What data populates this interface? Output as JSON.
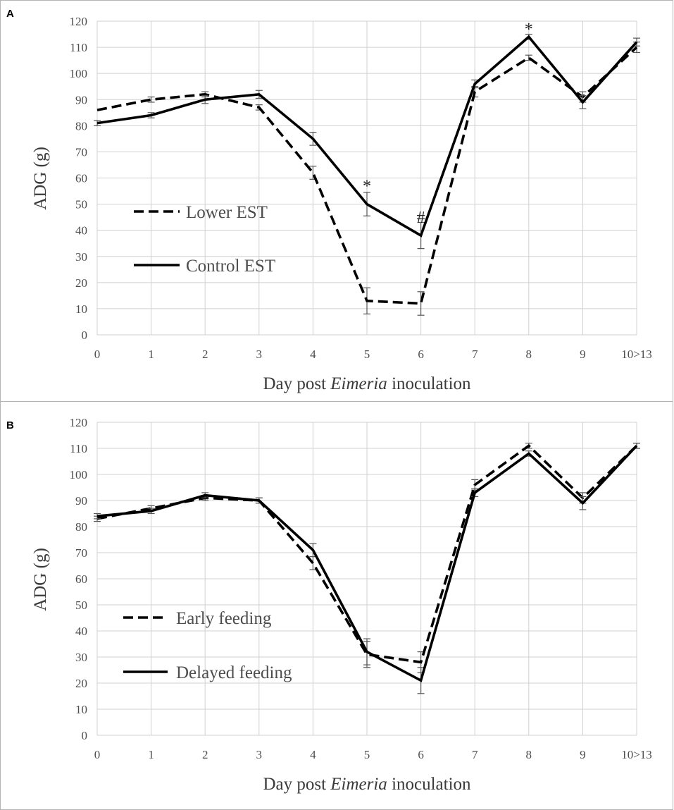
{
  "chart_data": [
    {
      "type": "line",
      "panel_label": "A",
      "categories": [
        "0",
        "1",
        "2",
        "3",
        "4",
        "5",
        "6",
        "7",
        "8",
        "9",
        "10>13"
      ],
      "xlabel": {
        "prefix": "Day post ",
        "italic": "Eimeria",
        "suffix": " inoculation"
      },
      "ylabel": "ADG (g)",
      "ylim": [
        0,
        120
      ],
      "yticks": [
        0,
        10,
        20,
        30,
        40,
        50,
        60,
        70,
        80,
        90,
        100,
        110,
        120
      ],
      "grid": true,
      "legend_position": "center-left",
      "series": [
        {
          "name": "Lower EST",
          "style": "dashed",
          "values": [
            86,
            90,
            92,
            87,
            62,
            13,
            12,
            93,
            106,
            91,
            110
          ],
          "errors": [
            0,
            1,
            1,
            1,
            2.5,
            5,
            4.5,
            2,
            1,
            2,
            2
          ]
        },
        {
          "name": "Control EST",
          "style": "solid",
          "values": [
            81,
            84,
            90,
            92,
            75,
            50,
            38,
            96,
            114,
            89,
            112
          ],
          "errors": [
            1,
            1,
            1.5,
            1.5,
            2.5,
            4.5,
            5,
            1.5,
            1,
            2.5,
            1.5
          ]
        }
      ],
      "annotations": [
        {
          "text": "*",
          "x_index": 5,
          "y": 57
        },
        {
          "text": "#",
          "x_index": 6,
          "y": 45
        },
        {
          "text": "*",
          "x_index": 8,
          "y": 117
        }
      ]
    },
    {
      "type": "line",
      "panel_label": "B",
      "categories": [
        "0",
        "1",
        "2",
        "3",
        "4",
        "5",
        "6",
        "7",
        "8",
        "9",
        "10>13"
      ],
      "xlabel": {
        "prefix": "Day post ",
        "italic": "Eimeria",
        "suffix": " inoculation"
      },
      "ylabel": "ADG (g)",
      "ylim": [
        0,
        120
      ],
      "yticks": [
        0,
        10,
        20,
        30,
        40,
        50,
        60,
        70,
        80,
        90,
        100,
        110,
        120
      ],
      "grid": true,
      "legend_position": "center-left",
      "series": [
        {
          "name": "Early feeding",
          "style": "dashed",
          "values": [
            83,
            87,
            91,
            90,
            66,
            31,
            28,
            96,
            111,
            91,
            111
          ],
          "errors": [
            1,
            1,
            1,
            1,
            2.5,
            5,
            4,
            2,
            1,
            2,
            1
          ]
        },
        {
          "name": "Delayed feeding",
          "style": "solid",
          "values": [
            84,
            86,
            92,
            90,
            71,
            32,
            21,
            93,
            108,
            89,
            111
          ],
          "errors": [
            1,
            1,
            1,
            1,
            2.5,
            5,
            5,
            1.5,
            1,
            2.5,
            1
          ]
        }
      ],
      "annotations": []
    }
  ]
}
